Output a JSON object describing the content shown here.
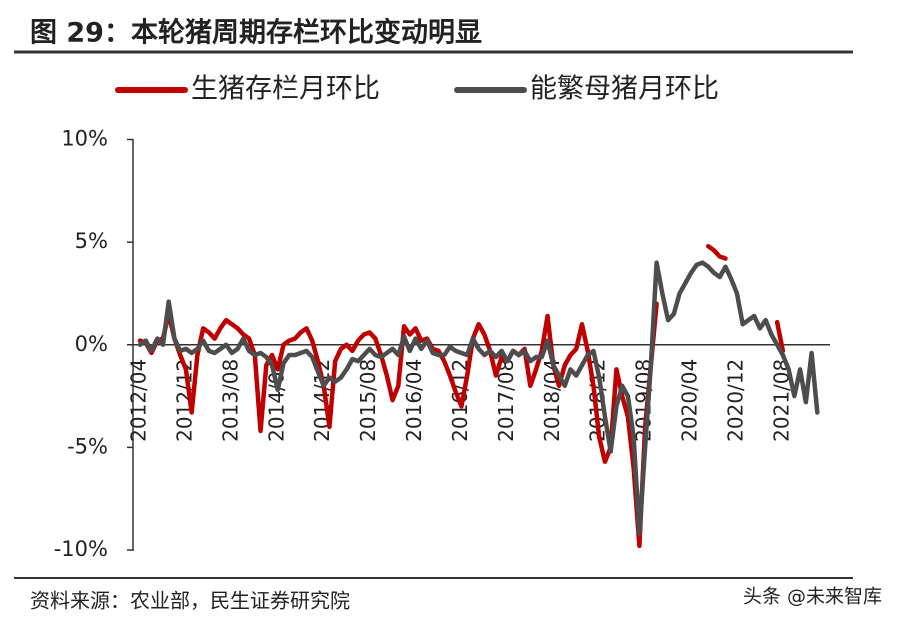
{
  "chart_data": {
    "type": "line",
    "title": "图 29：本轮猪周期存栏环比变动明显",
    "source": "资料来源：农业部，民生证券研究院",
    "watermark": "头条 @未来智库",
    "categories": [
      "2012/04",
      null,
      null,
      null,
      null,
      null,
      null,
      null,
      "2012/12",
      null,
      null,
      null,
      null,
      null,
      null,
      null,
      "2013/08",
      null,
      null,
      null,
      null,
      null,
      null,
      null,
      "2014/04",
      null,
      null,
      null,
      null,
      null,
      null,
      null,
      "2014/12",
      null,
      null,
      null,
      null,
      null,
      null,
      null,
      "2015/08",
      null,
      null,
      null,
      null,
      null,
      null,
      null,
      "2016/04",
      null,
      null,
      null,
      null,
      null,
      null,
      null,
      "2016/12",
      null,
      null,
      null,
      null,
      null,
      null,
      null,
      "2017/08",
      null,
      null,
      null,
      null,
      null,
      null,
      null,
      "2018/04",
      null,
      null,
      null,
      null,
      null,
      null,
      null,
      "2018/12",
      null,
      null,
      null,
      null,
      null,
      null,
      null,
      "2019/08",
      null,
      null,
      null,
      null,
      null,
      null,
      null,
      "2020/04",
      null,
      null,
      null,
      null,
      null,
      null,
      null,
      "2020/12",
      null,
      null,
      null,
      null,
      null,
      null,
      null,
      "2021/08",
      null,
      null,
      null,
      null,
      null,
      null
    ],
    "series": [
      {
        "name": "生猪存栏月环比",
        "color": "#c00000",
        "values": [
          0.2,
          0.1,
          -0.4,
          0.2,
          0.3,
          1.5,
          0.3,
          -0.5,
          -1.2,
          -3.3,
          -0.5,
          0.8,
          0.6,
          0.3,
          0.8,
          1.2,
          1.0,
          0.8,
          0.5,
          0.3,
          -0.5,
          -4.2,
          -1.0,
          -0.5,
          -1.2,
          0.0,
          0.2,
          0.3,
          0.6,
          0.8,
          0.2,
          -0.8,
          -2.0,
          -4.0,
          -0.8,
          -0.2,
          0.0,
          -0.3,
          0.2,
          0.5,
          0.6,
          0.3,
          -0.5,
          -1.5,
          -2.7,
          -2.0,
          0.9,
          0.5,
          0.8,
          0.2,
          0.3,
          -0.2,
          -0.3,
          -0.8,
          -1.5,
          -2.3,
          -3.0,
          -1.5,
          0.3,
          1.0,
          0.5,
          -0.3,
          -1.5,
          -0.6,
          -0.8,
          -0.3,
          -0.5,
          -0.2,
          -2.0,
          -1.2,
          -0.3,
          1.4,
          -1.0,
          -2.0,
          -1.0,
          -0.5,
          -0.2,
          1.0,
          -0.3,
          -2.0,
          -4.5,
          -5.7,
          -5.0,
          -1.2,
          -2.5,
          -3.5,
          -6.0,
          -9.8,
          -4.0,
          -1.0,
          2.0,
          null,
          null,
          null,
          null,
          null,
          null,
          null,
          null,
          4.8,
          4.6,
          4.3,
          4.2,
          null,
          null,
          null,
          null,
          null,
          null,
          null,
          null,
          1.1,
          -0.3,
          null,
          null,
          null,
          null,
          null,
          null
        ]
      },
      {
        "name": "能繁母猪月环比",
        "color": "#4d4d4d",
        "values": [
          0,
          0.2,
          -0.3,
          0.3,
          0,
          2.1,
          0.3,
          -0.3,
          -0.2,
          -0.4,
          -0.2,
          0.2,
          -0.3,
          -0.4,
          -0.2,
          0,
          -0.4,
          -0.2,
          0.3,
          -0.3,
          -0.5,
          -0.4,
          -0.6,
          -1.0,
          -2.2,
          -0.9,
          -0.5,
          -0.5,
          -0.4,
          -0.3,
          -0.6,
          -1.3,
          -2.0,
          -1.6,
          -1.8,
          -1.6,
          -1.2,
          -0.7,
          -0.8,
          -0.5,
          -0.2,
          -0.5,
          -0.6,
          -0.4,
          -0.2,
          -0.5,
          0.4,
          -0.3,
          0.3,
          -0.2,
          0.2,
          -0.4,
          -0.5,
          -0.5,
          -0.1,
          -0.3,
          -0.4,
          -0.5,
          0.3,
          -0.2,
          -0.5,
          -0.3,
          -0.6,
          -0.3,
          -0.8,
          -0.3,
          -0.5,
          -0.3,
          -0.8,
          -0.6,
          -0.6,
          0.2,
          -1.0,
          -1.5,
          -2.0,
          -1.2,
          -1.5,
          -1.0,
          -0.5,
          -0.3,
          -1.6,
          -3.5,
          -5.2,
          -3.0,
          -2.0,
          -2.5,
          -4.5,
          -9.2,
          -5.0,
          -1.0,
          4.0,
          2.5,
          1.2,
          1.5,
          2.5,
          3.0,
          3.5,
          3.9,
          4.0,
          3.8,
          3.5,
          3.3,
          3.8,
          3.2,
          2.5,
          1.0,
          1.2,
          1.4,
          0.8,
          1.2,
          0.5,
          0.0,
          -0.5,
          -1.2,
          -2.5,
          -1.2,
          -2.8,
          -0.4,
          -3.3
        ]
      }
    ],
    "ylim": [
      -10,
      10
    ],
    "yticks": [
      {
        "value": -10,
        "label": "-10%"
      },
      {
        "value": -5,
        "label": "-5%"
      },
      {
        "value": 0,
        "label": "0%"
      },
      {
        "value": 5,
        "label": "5%"
      },
      {
        "value": 10,
        "label": "10%"
      }
    ]
  }
}
